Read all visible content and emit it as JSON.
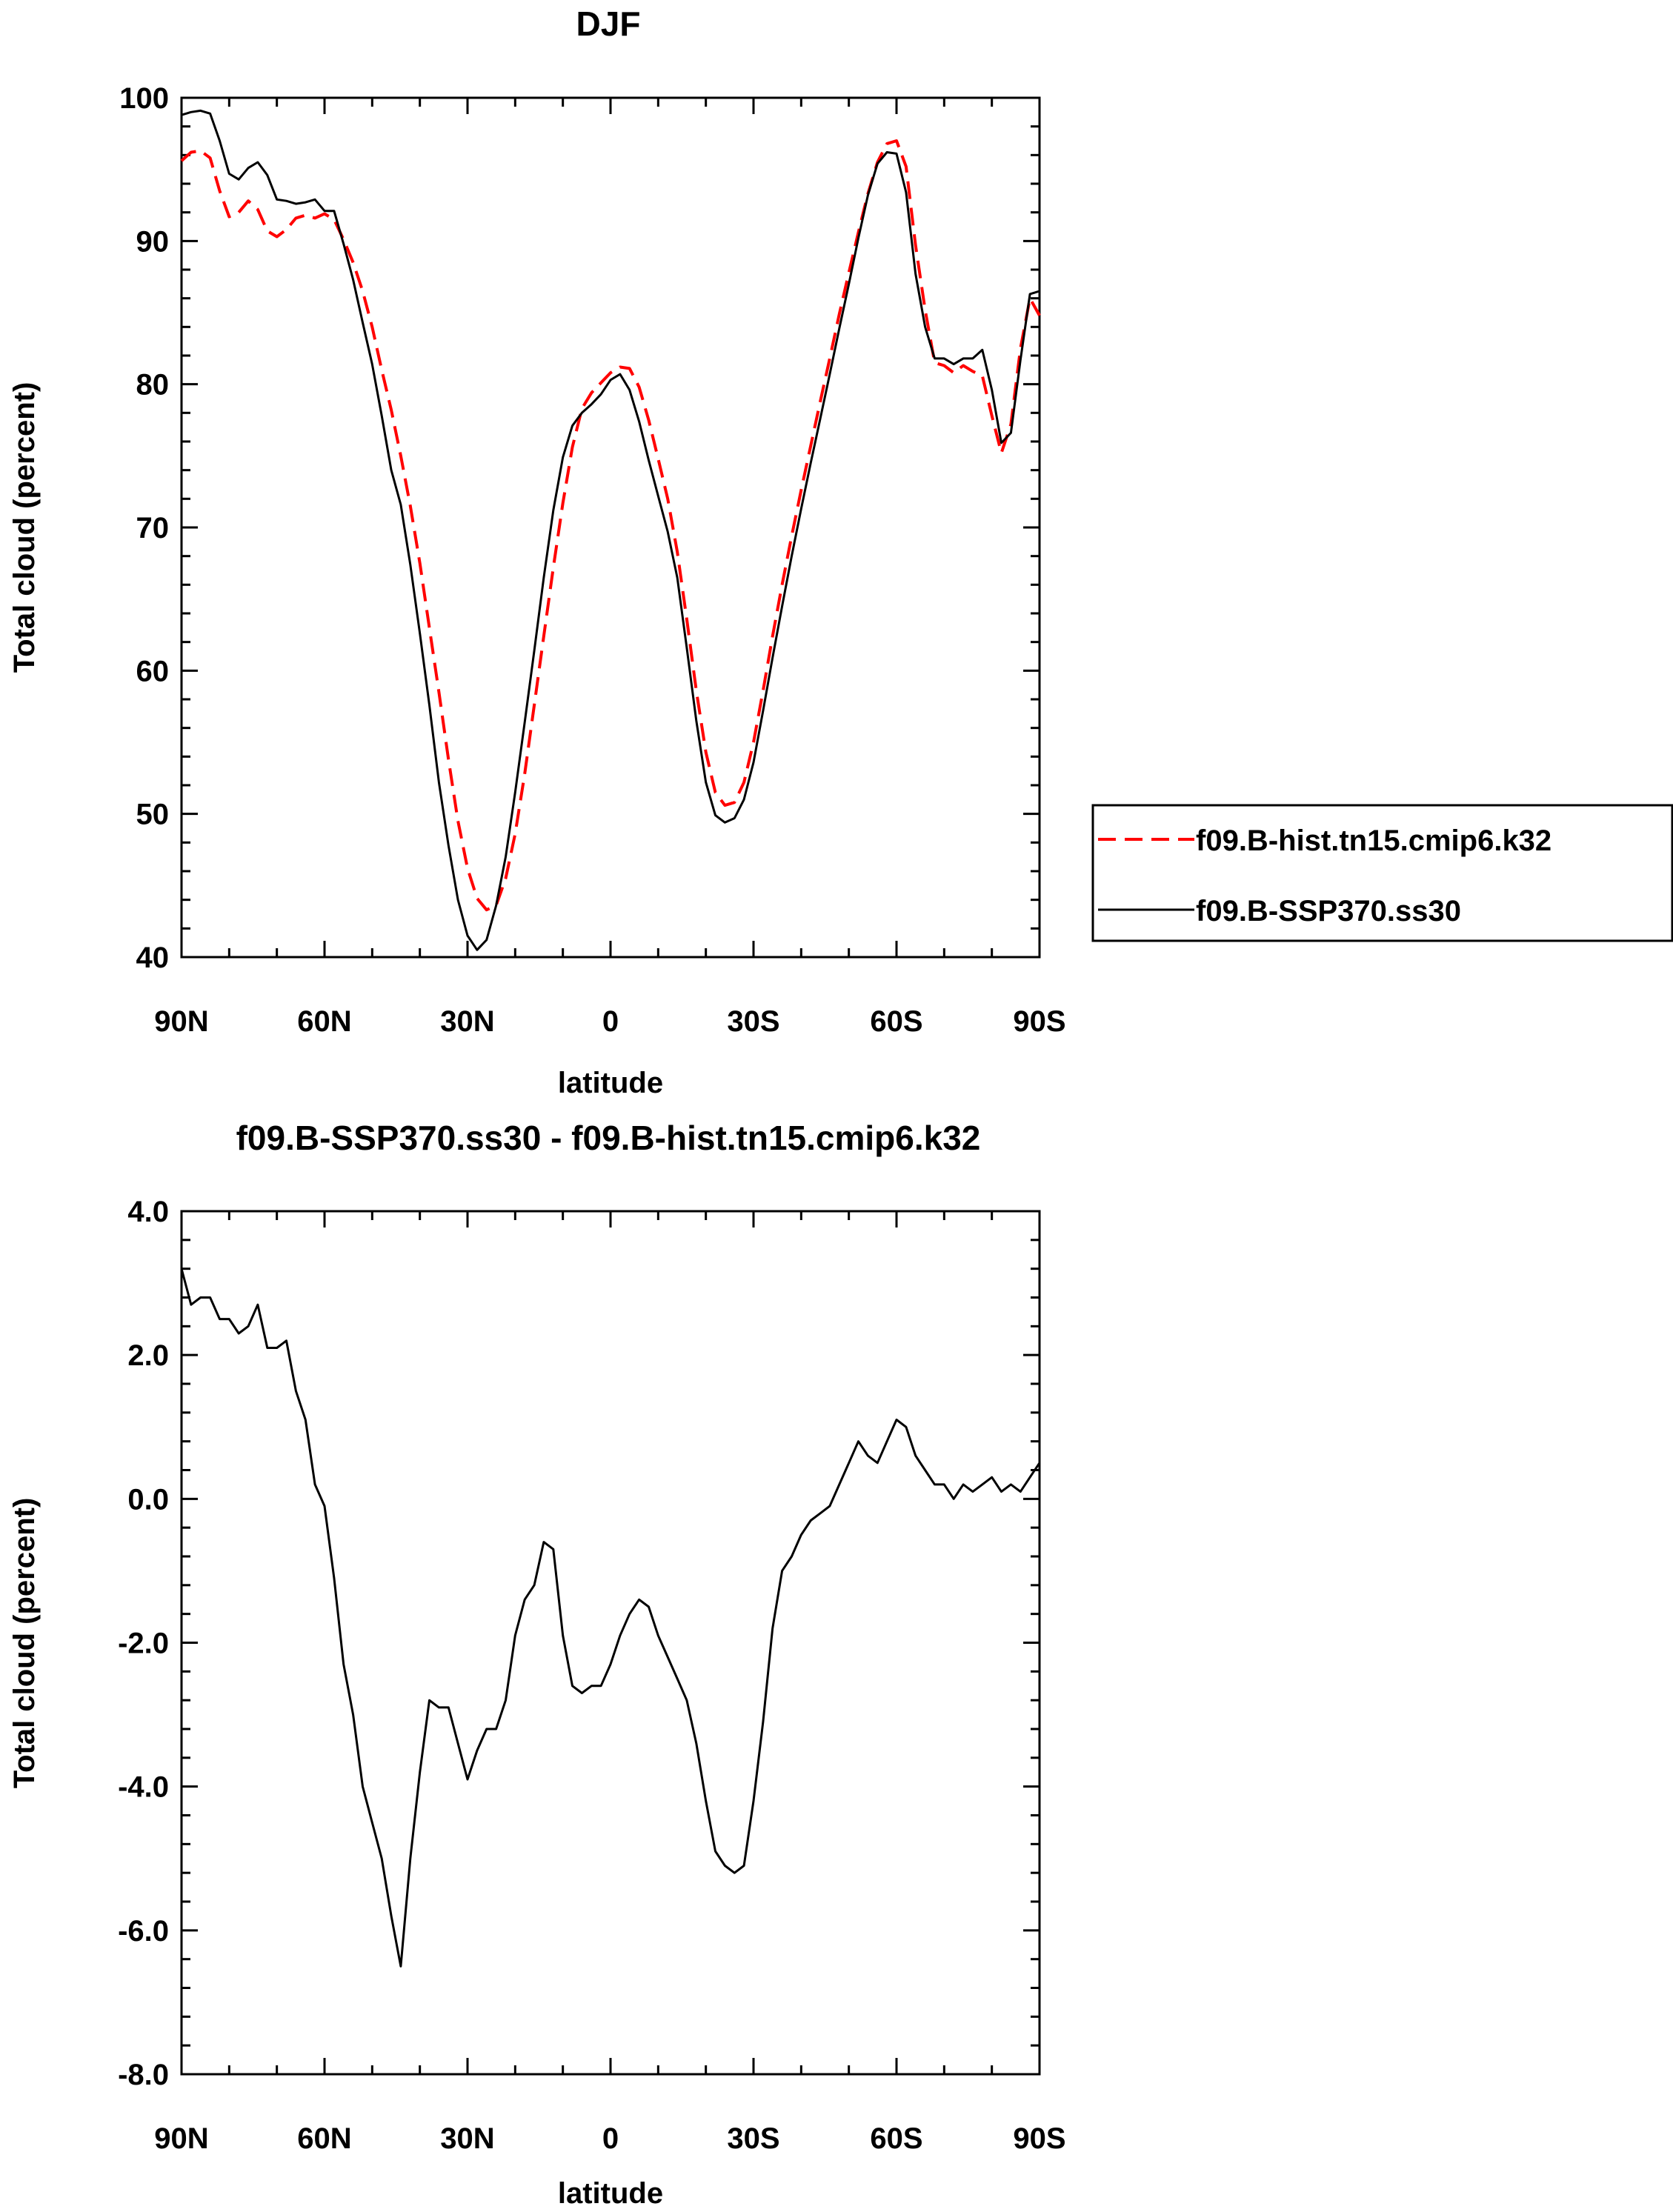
{
  "chart_data": [
    {
      "type": "line",
      "title": "DJF",
      "xlabel": "latitude",
      "ylabel": "Total cloud (percent)",
      "xlim": [
        90,
        -90
      ],
      "ylim": [
        40,
        100
      ],
      "x_ticks": [
        90,
        60,
        30,
        0,
        -30,
        -60,
        -90
      ],
      "x_tick_labels": [
        "90N",
        "60N",
        "30N",
        "0",
        "30S",
        "60S",
        "90S"
      ],
      "y_ticks": [
        40,
        50,
        60,
        70,
        80,
        90,
        100
      ],
      "y_tick_labels": [
        "40",
        "50",
        "60",
        "70",
        "80",
        "90",
        "100"
      ],
      "grid": false,
      "legend_position": "right",
      "series": [
        {
          "name": "f09.B-hist.tn15.cmip6.k32",
          "color": "#ff0000",
          "dash": "dashed",
          "x": [
            90,
            88,
            86,
            84,
            82,
            80,
            78,
            76,
            74,
            72,
            70,
            68,
            66,
            64,
            62,
            60,
            58,
            56,
            54,
            52,
            50,
            48,
            46,
            44,
            42,
            40,
            38,
            36,
            34,
            32,
            30,
            28,
            26,
            24,
            22,
            20,
            18,
            16,
            14,
            12,
            10,
            8,
            6,
            4,
            2,
            0,
            -2,
            -4,
            -6,
            -8,
            -10,
            -12,
            -14,
            -16,
            -18,
            -20,
            -22,
            -24,
            -26,
            -28,
            -30,
            -32,
            -34,
            -36,
            -38,
            -40,
            -42,
            -44,
            -46,
            -48,
            -50,
            -52,
            -54,
            -56,
            -58,
            -60,
            -62,
            -64,
            -66,
            -68,
            -70,
            -72,
            -74,
            -76,
            -78,
            -80,
            -82,
            -84,
            -86,
            -88,
            -90
          ],
          "values": [
            95.6,
            96.2,
            96.3,
            95.8,
            93.5,
            91.7,
            92.0,
            92.8,
            92.2,
            90.7,
            90.3,
            90.8,
            91.6,
            91.8,
            91.6,
            91.9,
            91.5,
            90.1,
            88.5,
            86.5,
            84.0,
            81.0,
            78.2,
            75.0,
            71.5,
            67.5,
            63.0,
            58.5,
            53.8,
            49.5,
            46.2,
            44.1,
            43.3,
            43.6,
            45.5,
            48.6,
            52.8,
            57.6,
            62.4,
            67.2,
            71.7,
            75.6,
            78.3,
            79.4,
            80.1,
            80.8,
            81.2,
            81.1,
            79.8,
            77.5,
            74.8,
            72.0,
            68.3,
            63.6,
            58.6,
            54.3,
            51.5,
            50.6,
            50.8,
            52.2,
            55.0,
            58.6,
            62.4,
            66.0,
            69.4,
            72.6,
            75.7,
            78.8,
            81.8,
            84.9,
            87.8,
            90.6,
            93.3,
            95.5,
            96.8,
            97.0,
            95.2,
            89.7,
            85.2,
            81.5,
            81.3,
            80.8,
            81.3,
            80.9,
            80.6,
            77.8,
            75.2,
            77.2,
            82.5,
            86.0,
            84.8
          ]
        },
        {
          "name": "f09.B-SSP370.ss30",
          "color": "#000000",
          "dash": "solid",
          "x": [
            90,
            88,
            86,
            84,
            82,
            80,
            78,
            76,
            74,
            72,
            70,
            68,
            66,
            64,
            62,
            60,
            58,
            56,
            54,
            52,
            50,
            48,
            46,
            44,
            42,
            40,
            38,
            36,
            34,
            32,
            30,
            28,
            26,
            24,
            22,
            20,
            18,
            16,
            14,
            12,
            10,
            8,
            6,
            4,
            2,
            0,
            -2,
            -4,
            -6,
            -8,
            -10,
            -12,
            -14,
            -16,
            -18,
            -20,
            -22,
            -24,
            -26,
            -28,
            -30,
            -32,
            -34,
            -36,
            -38,
            -40,
            -42,
            -44,
            -46,
            -48,
            -50,
            -52,
            -54,
            -56,
            -58,
            -60,
            -62,
            -64,
            -66,
            -68,
            -70,
            -72,
            -74,
            -76,
            -78,
            -80,
            -82,
            -84,
            -86,
            -88,
            -90
          ],
          "values": [
            98.8,
            99.0,
            99.1,
            98.9,
            97.0,
            94.7,
            94.3,
            95.1,
            95.5,
            94.6,
            92.9,
            92.8,
            92.6,
            92.7,
            92.9,
            92.1,
            92.1,
            89.8,
            87.3,
            84.3,
            81.4,
            77.8,
            74.0,
            71.6,
            67.4,
            62.6,
            57.6,
            52.2,
            47.8,
            44.0,
            41.5,
            40.5,
            41.2,
            43.6,
            47.0,
            51.5,
            56.4,
            61.4,
            66.5,
            71.2,
            74.9,
            77.1,
            78.0,
            78.6,
            79.3,
            80.3,
            80.7,
            79.6,
            77.4,
            74.7,
            72.2,
            69.7,
            66.5,
            61.6,
            56.5,
            52.2,
            49.9,
            49.4,
            49.7,
            51.0,
            53.6,
            57.2,
            60.9,
            64.5,
            68.0,
            71.3,
            74.5,
            77.6,
            80.7,
            83.9,
            87.0,
            90.2,
            93.2,
            95.4,
            96.2,
            96.1,
            93.4,
            87.7,
            84.0,
            81.8,
            81.8,
            81.4,
            81.8,
            81.8,
            82.4,
            79.6,
            75.9,
            76.6,
            81.7,
            86.3,
            86.5
          ]
        }
      ]
    },
    {
      "type": "line",
      "title": "f09.B-SSP370.ss30 - f09.B-hist.tn15.cmip6.k32",
      "xlabel": "latitude",
      "ylabel": "Total cloud (percent)",
      "xlim": [
        90,
        -90
      ],
      "ylim": [
        -8,
        4
      ],
      "x_ticks": [
        90,
        60,
        30,
        0,
        -30,
        -60,
        -90
      ],
      "x_tick_labels": [
        "90N",
        "60N",
        "30N",
        "0",
        "30S",
        "60S",
        "90S"
      ],
      "y_ticks": [
        -8,
        -6,
        -4,
        -2,
        0,
        2,
        4
      ],
      "y_tick_labels": [
        "-8.0",
        "-6.0",
        "-4.0",
        "-2.0",
        "0.0",
        "2.0",
        "4.0"
      ],
      "grid": false,
      "series": [
        {
          "color": "#000000",
          "dash": "solid",
          "x": [
            90,
            88,
            86,
            84,
            82,
            80,
            78,
            76,
            74,
            72,
            70,
            68,
            66,
            64,
            62,
            60,
            58,
            56,
            54,
            52,
            50,
            48,
            46,
            44,
            42,
            40,
            38,
            36,
            34,
            32,
            30,
            28,
            26,
            24,
            22,
            20,
            18,
            16,
            14,
            12,
            10,
            8,
            6,
            4,
            2,
            0,
            -2,
            -4,
            -6,
            -8,
            -10,
            -12,
            -14,
            -16,
            -18,
            -20,
            -22,
            -24,
            -26,
            -28,
            -30,
            -32,
            -34,
            -36,
            -38,
            -40,
            -42,
            -44,
            -46,
            -48,
            -50,
            -52,
            -54,
            -56,
            -58,
            -60,
            -62,
            -64,
            -66,
            -68,
            -70,
            -72,
            -74,
            -76,
            -78,
            -80,
            -82,
            -84,
            -86,
            -88,
            -90
          ],
          "values": [
            3.2,
            2.7,
            2.8,
            2.8,
            2.5,
            2.5,
            2.3,
            2.4,
            2.7,
            2.1,
            2.1,
            2.2,
            1.5,
            1.1,
            0.2,
            -0.1,
            -1.1,
            -2.3,
            -3.0,
            -4.0,
            -4.5,
            -5.0,
            -5.8,
            -6.5,
            -5.0,
            -3.8,
            -2.8,
            -2.9,
            -2.9,
            -3.4,
            -3.9,
            -3.5,
            -3.2,
            -3.2,
            -2.8,
            -1.9,
            -1.4,
            -1.2,
            -0.6,
            -0.7,
            -1.9,
            -2.6,
            -2.7,
            -2.6,
            -2.6,
            -2.3,
            -1.9,
            -1.6,
            -1.4,
            -1.5,
            -1.9,
            -2.2,
            -2.5,
            -2.8,
            -3.4,
            -4.2,
            -4.9,
            -5.1,
            -5.2,
            -5.1,
            -4.2,
            -3.1,
            -1.8,
            -1.0,
            -0.8,
            -0.5,
            -0.3,
            -0.2,
            -0.1,
            0.2,
            0.5,
            0.8,
            0.6,
            0.5,
            0.8,
            1.1,
            1.0,
            0.6,
            0.4,
            0.2,
            0.2,
            0.0,
            0.2,
            0.1,
            0.2,
            0.3,
            0.1,
            0.2,
            0.1,
            0.3,
            0.5
          ]
        }
      ]
    }
  ]
}
